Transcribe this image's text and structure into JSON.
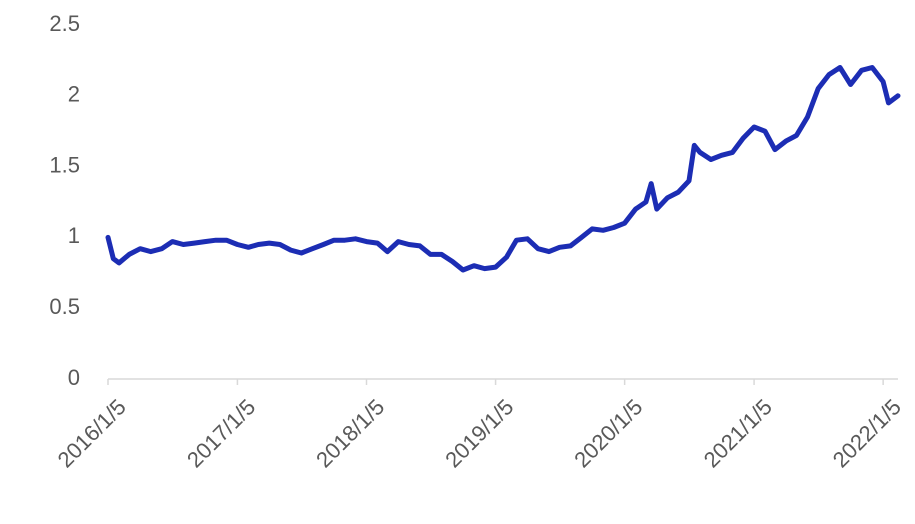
{
  "chart_data": {
    "type": "line",
    "x": [
      "2016/1/5",
      "2016/1/20",
      "2016/2/5",
      "2016/3/5",
      "2016/4/5",
      "2016/5/5",
      "2016/6/5",
      "2016/7/5",
      "2016/8/5",
      "2016/9/5",
      "2016/10/5",
      "2016/11/5",
      "2016/12/5",
      "2017/1/5",
      "2017/2/5",
      "2017/3/5",
      "2017/4/5",
      "2017/5/5",
      "2017/6/5",
      "2017/7/5",
      "2017/8/5",
      "2017/9/5",
      "2017/10/5",
      "2017/11/5",
      "2017/12/5",
      "2018/1/5",
      "2018/2/5",
      "2018/3/5",
      "2018/4/5",
      "2018/5/5",
      "2018/6/5",
      "2018/7/5",
      "2018/8/5",
      "2018/9/5",
      "2018/10/5",
      "2018/11/5",
      "2018/12/5",
      "2019/1/5",
      "2019/2/5",
      "2019/3/5",
      "2019/4/5",
      "2019/5/5",
      "2019/6/5",
      "2019/7/5",
      "2019/8/5",
      "2019/9/5",
      "2019/10/5",
      "2019/11/5",
      "2019/12/5",
      "2020/1/5",
      "2020/2/5",
      "2020/3/5",
      "2020/3/20",
      "2020/4/5",
      "2020/5/5",
      "2020/6/5",
      "2020/7/5",
      "2020/7/20",
      "2020/8/5",
      "2020/9/5",
      "2020/10/5",
      "2020/11/5",
      "2020/12/5",
      "2021/1/5",
      "2021/2/5",
      "2021/3/5",
      "2021/4/5",
      "2021/5/5",
      "2021/6/5",
      "2021/7/5",
      "2021/8/5",
      "2021/9/5",
      "2021/10/5",
      "2021/11/5",
      "2021/12/5",
      "2022/1/5",
      "2022/1/20",
      "2022/2/16"
    ],
    "series": [
      {
        "color": "#1c2db4",
        "values": [
          1.0,
          0.85,
          0.82,
          0.88,
          0.92,
          0.9,
          0.92,
          0.97,
          0.95,
          0.96,
          0.97,
          0.98,
          0.98,
          0.95,
          0.93,
          0.95,
          0.96,
          0.95,
          0.91,
          0.89,
          0.92,
          0.95,
          0.98,
          0.98,
          0.99,
          0.97,
          0.96,
          0.9,
          0.97,
          0.95,
          0.94,
          0.88,
          0.88,
          0.83,
          0.77,
          0.8,
          0.78,
          0.79,
          0.86,
          0.98,
          0.99,
          0.92,
          0.9,
          0.93,
          0.94,
          1.0,
          1.06,
          1.05,
          1.07,
          1.1,
          1.2,
          1.25,
          1.38,
          1.2,
          1.28,
          1.32,
          1.4,
          1.65,
          1.6,
          1.55,
          1.58,
          1.6,
          1.7,
          1.78,
          1.75,
          1.62,
          1.68,
          1.72,
          1.85,
          2.05,
          2.15,
          2.2,
          2.08,
          2.18,
          2.2,
          2.1,
          1.95,
          2.0
        ]
      }
    ],
    "xlim": [
      "2016/1/5",
      "2022/2/16"
    ],
    "xticks": [
      "2016/1/5",
      "2017/1/5",
      "2018/1/5",
      "2019/1/5",
      "2020/1/5",
      "2021/1/5",
      "2022/1/5"
    ],
    "ylim": [
      0,
      2.5
    ],
    "yticks": [
      0,
      0.5,
      1,
      1.5,
      2,
      2.5
    ]
  }
}
